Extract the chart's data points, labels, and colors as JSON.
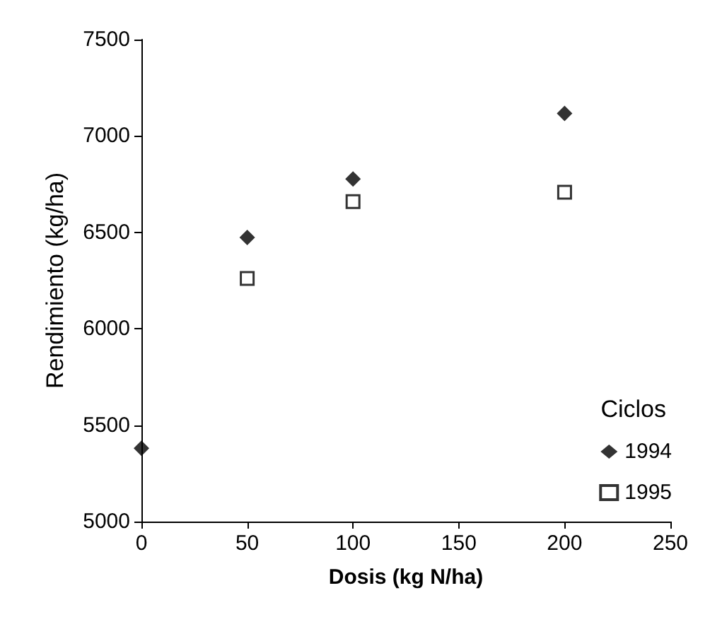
{
  "chart_data": {
    "type": "scatter",
    "xlabel": "Dosis (kg N/ha)",
    "ylabel": "Rendimiento (kg/ha)",
    "legend_title": "Ciclos",
    "legend": "bottom right",
    "grid": false,
    "xlim": [
      0,
      250
    ],
    "xticks": [
      0,
      50,
      100,
      150,
      200,
      250
    ],
    "ylim": [
      5000,
      7500
    ],
    "yticks": [
      5000,
      5500,
      6000,
      6500,
      7000,
      7500
    ],
    "series": [
      {
        "name": "1994",
        "color": "#000000",
        "marker": "diamond",
        "x": [
          0,
          50,
          100,
          200
        ],
        "values": [
          5380,
          6474,
          6777,
          7117
        ]
      },
      {
        "name": "1995",
        "color": "#000000",
        "marker": "square",
        "x": [
          50,
          100,
          200
        ],
        "values": [
          6261,
          6660,
          6708
        ]
      }
    ]
  }
}
